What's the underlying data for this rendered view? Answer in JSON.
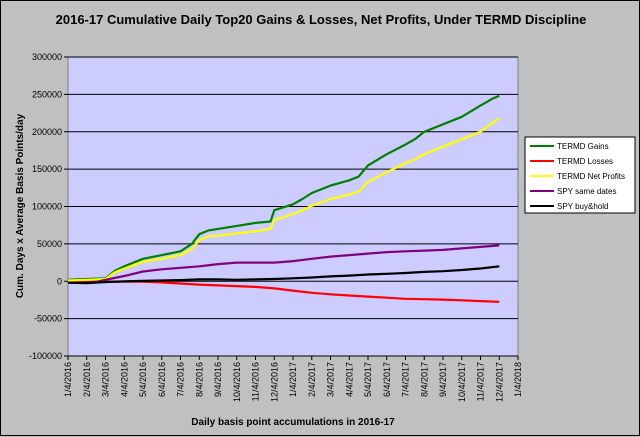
{
  "chart_data": {
    "type": "line",
    "title": "2016-17 Cumulative Daily Top20 Gains & Losses, Net Profits, Under TERMD Discipline",
    "xlabel": "Daily basis point accumulations in 2016-17",
    "ylabel": "Cum. Days x Average Basis Points/day",
    "ylim": [
      -100000,
      300000
    ],
    "yticks": [
      -100000,
      -50000,
      0,
      50000,
      100000,
      150000,
      200000,
      250000,
      300000
    ],
    "ytick_labels": [
      "-100000",
      "-50000",
      "0",
      "50000",
      "100000",
      "150000",
      "200000",
      "250000",
      "300000"
    ],
    "xlim_months": [
      0,
      24
    ],
    "xticks": [
      "1/4/2016",
      "2/4/2016",
      "3/4/2016",
      "4/4/2016",
      "5/4/2016",
      "6/4/2016",
      "7/4/2016",
      "8/4/2016",
      "9/4/2016",
      "10/4/2016",
      "11/4/2016",
      "12/4/2016",
      "1/4/2017",
      "2/4/2017",
      "3/4/2017",
      "4/4/2017",
      "5/4/2017",
      "6/4/2017",
      "7/4/2017",
      "8/4/2017",
      "9/4/2017",
      "10/4/2017",
      "11/4/2017",
      "12/4/2017",
      "1/4/2018"
    ],
    "grid": "horizontal",
    "legend_position": "right",
    "series": [
      {
        "name": "TERMD Gains",
        "color": "#008000",
        "x": [
          0,
          1,
          2,
          2.5,
          3,
          4,
          5,
          6,
          6.6,
          7,
          7.5,
          8,
          9,
          10,
          10.8,
          11,
          12,
          12.5,
          13,
          14,
          15,
          15.5,
          16,
          17,
          18,
          18.5,
          19,
          20,
          21,
          22,
          22.7,
          23
        ],
        "values": [
          2000,
          3000,
          4000,
          14000,
          20000,
          30000,
          35000,
          40000,
          50000,
          63000,
          68000,
          70000,
          74000,
          78000,
          80000,
          95000,
          103000,
          110000,
          118000,
          128000,
          135000,
          140000,
          155000,
          170000,
          183000,
          190000,
          200000,
          210000,
          220000,
          235000,
          245000,
          248000
        ]
      },
      {
        "name": "TERMD Losses",
        "color": "#ff0000",
        "x": [
          0,
          1,
          2,
          3,
          4,
          5,
          6,
          7,
          8,
          9,
          10,
          11,
          12,
          13,
          14,
          15,
          16,
          17,
          18,
          19,
          20,
          21,
          22,
          23
        ],
        "values": [
          -1000,
          -1000,
          -1000,
          -500,
          -500,
          -1500,
          -3000,
          -4500,
          -5500,
          -6500,
          -7500,
          -9500,
          -12500,
          -15500,
          -17500,
          -19000,
          -20500,
          -22000,
          -23500,
          -24000,
          -24500,
          -25500,
          -26500,
          -27500
        ]
      },
      {
        "name": "TERMD Net Profits",
        "color": "#ffff00",
        "x": [
          0,
          1,
          2,
          2.5,
          3,
          4,
          5,
          6,
          6.6,
          7,
          7.5,
          8,
          9,
          10,
          10.8,
          11,
          12,
          12.5,
          13,
          14,
          15,
          15.5,
          16,
          17,
          18,
          18.5,
          19,
          20,
          21,
          22,
          22.7,
          23
        ],
        "values": [
          1000,
          2000,
          3000,
          12000,
          17000,
          26000,
          30000,
          35000,
          43000,
          55000,
          60000,
          61000,
          64000,
          67000,
          70000,
          82000,
          90000,
          95000,
          101000,
          110000,
          116000,
          120000,
          133000,
          146000,
          158000,
          163000,
          170000,
          180000,
          190000,
          200000,
          213000,
          218000
        ]
      },
      {
        "name": "SPY same dates",
        "color": "#800080",
        "x": [
          0,
          1,
          1.5,
          2,
          3,
          4,
          5,
          6,
          7,
          8,
          9,
          10,
          11,
          12,
          13,
          14,
          15,
          16,
          17,
          18,
          19,
          20,
          21,
          22,
          23
        ],
        "values": [
          -2000,
          -2000,
          -1000,
          2000,
          7000,
          13000,
          16000,
          18000,
          20000,
          23000,
          25000,
          25000,
          25000,
          27000,
          30000,
          33000,
          35000,
          37000,
          39000,
          40000,
          41000,
          42000,
          44000,
          46000,
          48000
        ]
      },
      {
        "name": "SPY  buy&hold",
        "color": "#000000",
        "x": [
          0,
          1,
          2,
          3,
          4,
          5,
          6,
          7,
          8,
          9,
          10,
          11,
          12,
          13,
          14,
          15,
          16,
          17,
          18,
          19,
          20,
          21,
          22,
          23
        ],
        "values": [
          -2000,
          -2500,
          -1000,
          0,
          500,
          1000,
          1500,
          2500,
          2500,
          2000,
          2500,
          3000,
          4000,
          5000,
          6500,
          7500,
          9000,
          10000,
          11000,
          12500,
          13500,
          15000,
          17000,
          20000
        ]
      }
    ]
  }
}
